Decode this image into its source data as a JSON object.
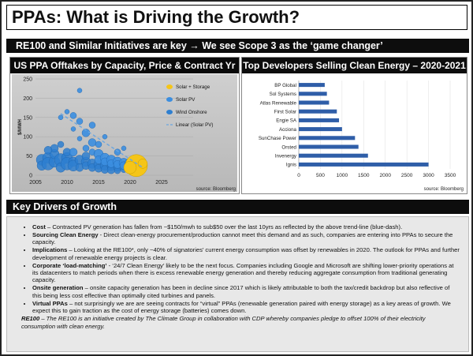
{
  "title": "PPAs: What is Driving the Growth?",
  "subtitle": "RE100 and Similar Initiatives are key → We see Scope 3 as the ‘game changer’",
  "chart_data": [
    {
      "type": "scatter",
      "title": "US PPA Offtakes by Capacity, Price & Contract Yr",
      "xlabel": "",
      "ylabel": "$/MWH",
      "xlim": [
        2005,
        2025
      ],
      "ylim": [
        0,
        250
      ],
      "xticks": [
        "2005",
        "2010",
        "2015",
        "2020",
        "2025"
      ],
      "yticks": [
        "0",
        "50",
        "100",
        "150",
        "200",
        "250"
      ],
      "legend": [
        "Solar + Storage",
        "Solar PV",
        "Wind Onshore",
        "Linear (Solar PV)"
      ],
      "legend_position": "right",
      "source": "source: Bloomberg",
      "colors": {
        "solar_storage": "#f5c518",
        "solar_pv": "#2e7fd0",
        "wind": "#2e7fd0",
        "trend": "#6aa6e0"
      },
      "series": [
        {
          "name": "Solar + Storage",
          "points": [
            [
              2021,
              25,
              14
            ],
            [
              2020,
              20,
              8
            ],
            [
              2022,
              30,
              6
            ]
          ]
        },
        {
          "name": "Solar PV",
          "points": [
            [
              2009,
              150,
              3
            ],
            [
              2010,
              165,
              3
            ],
            [
              2011,
              155,
              4
            ],
            [
              2011,
              120,
              3
            ],
            [
              2012,
              140,
              4
            ],
            [
              2012,
              95,
              3
            ],
            [
              2013,
              110,
              5
            ],
            [
              2013,
              70,
              4
            ],
            [
              2014,
              85,
              5
            ],
            [
              2014,
              60,
              4
            ],
            [
              2015,
              55,
              6
            ],
            [
              2015,
              40,
              5
            ],
            [
              2016,
              45,
              6
            ],
            [
              2016,
              35,
              5
            ],
            [
              2017,
              40,
              6
            ],
            [
              2017,
              30,
              5
            ],
            [
              2018,
              35,
              6
            ],
            [
              2018,
              28,
              5
            ],
            [
              2019,
              32,
              6
            ],
            [
              2019,
              25,
              5
            ],
            [
              2020,
              30,
              7
            ],
            [
              2020,
              22,
              5
            ],
            [
              2021,
              28,
              6
            ],
            [
              2018,
              60,
              4
            ],
            [
              2019,
              70,
              3
            ],
            [
              2012,
              220,
              3
            ],
            [
              2014,
              130,
              4
            ],
            [
              2016,
              100,
              3
            ],
            [
              2011,
              60,
              5
            ],
            [
              2015,
              80,
              4
            ]
          ]
        },
        {
          "name": "Wind Onshore",
          "points": [
            [
              2006,
              40,
              7
            ],
            [
              2006,
              25,
              6
            ],
            [
              2007,
              45,
              7
            ],
            [
              2007,
              30,
              8
            ],
            [
              2008,
              35,
              7
            ],
            [
              2008,
              55,
              6
            ],
            [
              2009,
              40,
              8
            ],
            [
              2009,
              20,
              6
            ],
            [
              2010,
              45,
              7
            ],
            [
              2010,
              30,
              8
            ],
            [
              2011,
              35,
              6
            ],
            [
              2011,
              25,
              7
            ],
            [
              2012,
              40,
              6
            ],
            [
              2012,
              20,
              5
            ],
            [
              2013,
              35,
              6
            ],
            [
              2013,
              25,
              5
            ],
            [
              2014,
              30,
              6
            ],
            [
              2014,
              20,
              5
            ],
            [
              2015,
              28,
              6
            ],
            [
              2015,
              18,
              5
            ],
            [
              2016,
              25,
              6
            ],
            [
              2016,
              15,
              5
            ],
            [
              2017,
              22,
              5
            ],
            [
              2017,
              14,
              5
            ],
            [
              2018,
              20,
              5
            ],
            [
              2018,
              12,
              4
            ],
            [
              2019,
              22,
              4
            ],
            [
              2019,
              15,
              4
            ],
            [
              2020,
              18,
              4
            ],
            [
              2021,
              16,
              4
            ],
            [
              2008,
              70,
              5
            ],
            [
              2010,
              60,
              5
            ],
            [
              2013,
              50,
              5
            ],
            [
              2009,
              80,
              4
            ],
            [
              2007,
              65,
              5
            ]
          ]
        },
        {
          "name": "Linear (Solar PV)",
          "line": [
            [
              2009,
              160
            ],
            [
              2022,
              20
            ]
          ]
        }
      ]
    },
    {
      "type": "bar",
      "orientation": "horizontal",
      "title": "Top Developers Selling Clean Energy – 2020-2021",
      "categories": [
        "BP Global",
        "Sol Systems",
        "Atlas Renewable",
        "First Solar",
        "Engie SA",
        "Acciona",
        "SunChase Power",
        "Orsted",
        "Invenergy",
        "Ignis"
      ],
      "values": [
        600,
        650,
        700,
        880,
        930,
        1000,
        1300,
        1380,
        1600,
        3000
      ],
      "xlim": [
        0,
        3500
      ],
      "xticks": [
        "0",
        "500",
        "1000",
        "1500",
        "2000",
        "2500",
        "3000",
        "3500"
      ],
      "source": "source: Bloomberg",
      "colors": {
        "bar": "#2f5ea8"
      }
    }
  ],
  "drivers_title": "Key Drivers of Growth",
  "drivers": [
    {
      "head": "Cost",
      "text": " – Contracted PV generation has fallen from ~$150/mwh to sub$50 over the last 10yrs as reflected by the above trend-line (blue-dash)."
    },
    {
      "head": "Sourcing Clean Energy",
      "text": " - Direct clean-energy procurement/production cannot meet this demand and as such, companies are entering into PPAs to secure the capacity."
    },
    {
      "head": "Implications",
      "text": " – Looking at the RE100*, only ~40% of signatories’ current energy consumption was offset by renewables in 2020. The outlook for PPAs and further development of renewable energy projects is clear."
    },
    {
      "head": "Corporate ‘load-matching’",
      "text": " - ‘24/7 Clean Energy’ likely to be the next focus. Companies including Google and Microsoft are shifting lower-priority operations at its datacenters to match periods when there is excess renewable energy generation and thereby reducing aggregate consumption from traditional generating capacity."
    },
    {
      "head": "Onsite generation",
      "text": " – onsite capacity generation has been in decline since 2017 which is likely attributable to both the tax/credit backdrop but also reflective of this being less cost effective than optimally cited turbines and panels."
    },
    {
      "head": "Virtual PPAs",
      "text": " – not surprisingly we are are seeing contracts for “virtual” PPAs (renewable generation paired with energy storage) as a key areas of growth. We expect this to gain traction as the cost of energy storage (batteries) comes down."
    }
  ],
  "footnote_head": "RE100",
  "footnote_text": " – The RE100 is an initiative created by The Climate Group in collaboration with CDP whereby companies pledge to offset 100% of their electricity consumption with clean energy."
}
